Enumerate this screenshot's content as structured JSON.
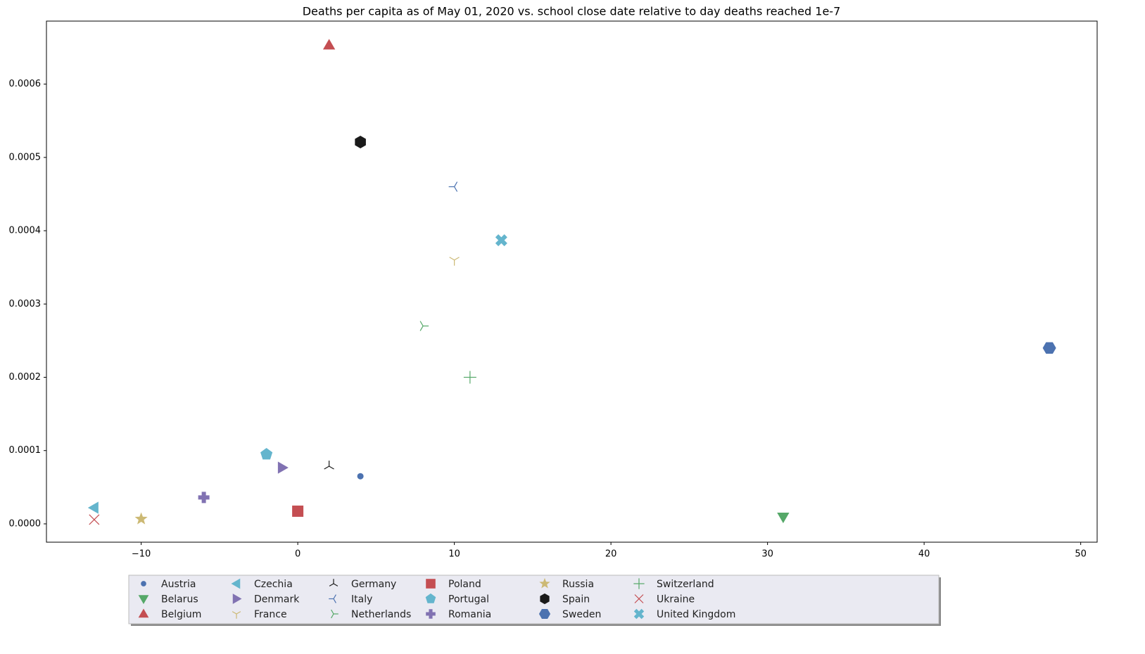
{
  "chart_data": {
    "type": "scatter",
    "title": "Deaths per capita as of May 01, 2020 vs. school close date relative to day deaths reached 1e-7",
    "xlim": [
      -16.05,
      51.05
    ],
    "ylim": [
      -2.5e-05,
      0.000686
    ],
    "xticks": [
      {
        "value": -10,
        "label": "−10"
      },
      0,
      10,
      20,
      30,
      40,
      50
    ],
    "yticks": [
      {
        "value": 0,
        "label": "0.0000"
      },
      {
        "value": 0.0001,
        "label": "0.0001"
      },
      {
        "value": 0.0002,
        "label": "0.0002"
      },
      {
        "value": 0.0003,
        "label": "0.0003"
      },
      {
        "value": 0.0004,
        "label": "0.0004"
      },
      {
        "value": 0.0005,
        "label": "0.0005"
      },
      {
        "value": 0.0006,
        "label": "0.0006"
      }
    ],
    "legend_loc": "lower center",
    "legend_columns": 8,
    "series": [
      {
        "name": "Austria",
        "color": "#4c72b0",
        "marker": "o",
        "x": [
          4
        ],
        "values": [
          6.5e-05
        ]
      },
      {
        "name": "Belarus",
        "color": "#55a868",
        "marker": "v",
        "x": [
          31
        ],
        "values": [
          9.6e-06
        ]
      },
      {
        "name": "Belgium",
        "color": "#c44e52",
        "marker": "^",
        "x": [
          2
        ],
        "values": [
          0.000653
        ]
      },
      {
        "name": "Czechia",
        "color": "#64b5cd",
        "marker": "<",
        "x": [
          -13
        ],
        "values": [
          2.2e-05
        ]
      },
      {
        "name": "Denmark",
        "color": "#8172b2",
        "marker": ">",
        "x": [
          -1
        ],
        "values": [
          7.67e-05
        ]
      },
      {
        "name": "France",
        "color": "#ccb974",
        "marker": "1",
        "x": [
          10
        ],
        "values": [
          0.00036
        ]
      },
      {
        "name": "Germany",
        "color": "#1a1a1a",
        "marker": "2",
        "x": [
          2
        ],
        "values": [
          7.86e-05
        ]
      },
      {
        "name": "Italy",
        "color": "#4c72b0",
        "marker": "3",
        "x": [
          10
        ],
        "values": [
          0.00046
        ]
      },
      {
        "name": "Netherlands",
        "color": "#55a868",
        "marker": "4",
        "x": [
          8
        ],
        "values": [
          0.00027
        ]
      },
      {
        "name": "Poland",
        "color": "#c44e52",
        "marker": "s",
        "x": [
          0
        ],
        "values": [
          1.73e-05
        ]
      },
      {
        "name": "Portugal",
        "color": "#64b5cd",
        "marker": "p",
        "x": [
          -2
        ],
        "values": [
          9.49e-05
        ]
      },
      {
        "name": "Romania",
        "color": "#8172b2",
        "marker": "P",
        "x": [
          -6
        ],
        "values": [
          3.6e-05
        ]
      },
      {
        "name": "Russia",
        "color": "#ccb974",
        "marker": "*",
        "x": [
          -10
        ],
        "values": [
          6.7e-06
        ]
      },
      {
        "name": "Spain",
        "color": "#1a1a1a",
        "marker": "h",
        "x": [
          4
        ],
        "values": [
          0.000521
        ]
      },
      {
        "name": "Sweden",
        "color": "#4c72b0",
        "marker": "H",
        "x": [
          48
        ],
        "values": [
          0.00024
        ]
      },
      {
        "name": "Switzerland",
        "color": "#55a868",
        "marker": "+",
        "x": [
          11
        ],
        "values": [
          0.0002
        ]
      },
      {
        "name": "Ukraine",
        "color": "#c44e52",
        "marker": "x",
        "x": [
          -13
        ],
        "values": [
          5.8e-06
        ]
      },
      {
        "name": "United Kingdom",
        "color": "#64b5cd",
        "marker": "X",
        "x": [
          13
        ],
        "values": [
          0.000387
        ]
      }
    ]
  }
}
